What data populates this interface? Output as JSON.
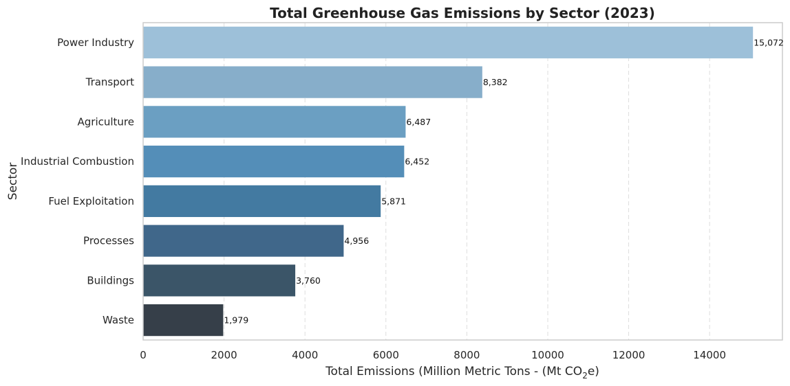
{
  "chart_data": {
    "type": "bar",
    "orientation": "horizontal",
    "title": "Total Greenhouse Gas Emissions by Sector (2023)",
    "xlabel": "Total Emissions (Million Metric Tons - (Mt CO",
    "xlabel_sub": "2",
    "xlabel_end": "e)",
    "ylabel": "Sector",
    "categories": [
      "Power Industry",
      "Transport",
      "Agriculture",
      "Industrial Combustion",
      "Fuel Exploitation",
      "Processes",
      "Buildings",
      "Waste"
    ],
    "values": [
      15072,
      8382,
      6487,
      6452,
      5871,
      4956,
      3760,
      1979
    ],
    "data_labels": [
      "15,072",
      "8,382",
      "6,487",
      "6,452",
      "5,871",
      "4,956",
      "3,760",
      "1,979"
    ],
    "colors": [
      "#9dc0d9",
      "#87aeca",
      "#6b9fc2",
      "#548eb8",
      "#437aa1",
      "#40678a",
      "#3b5568",
      "#363f49"
    ],
    "xlim": [
      0,
      15800
    ],
    "xticks": [
      0,
      2000,
      4000,
      6000,
      8000,
      10000,
      12000,
      14000
    ],
    "grid": "x-dashed"
  }
}
